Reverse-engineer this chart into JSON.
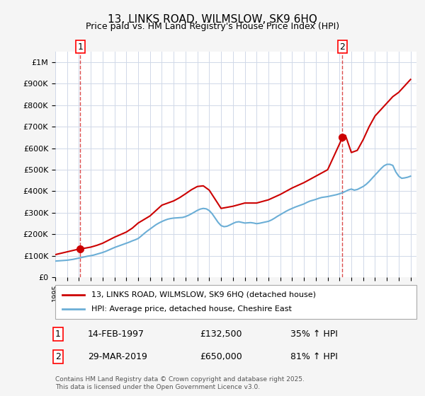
{
  "title": "13, LINKS ROAD, WILMSLOW, SK9 6HQ",
  "subtitle": "Price paid vs. HM Land Registry's House Price Index (HPI)",
  "hpi_color": "#6baed6",
  "price_color": "#cc0000",
  "background_color": "#f0f4ff",
  "plot_bg": "#ffffff",
  "ylim": [
    0,
    1050000
  ],
  "yticks": [
    0,
    100000,
    200000,
    300000,
    400000,
    500000,
    600000,
    700000,
    800000,
    900000,
    1000000
  ],
  "ytick_labels": [
    "£0",
    "£100K",
    "£200K",
    "£300K",
    "£400K",
    "£500K",
    "£600K",
    "£700K",
    "£800K",
    "£900K",
    "£1M"
  ],
  "xlim_start": 1995,
  "xlim_end": 2025.5,
  "transaction1_x": 1997.12,
  "transaction1_y": 132500,
  "transaction1_label": "1",
  "transaction2_x": 2019.25,
  "transaction2_y": 650000,
  "transaction2_label": "2",
  "legend_line1": "13, LINKS ROAD, WILMSLOW, SK9 6HQ (detached house)",
  "legend_line2": "HPI: Average price, detached house, Cheshire East",
  "note1_label": "1",
  "note1_date": "14-FEB-1997",
  "note1_price": "£132,500",
  "note1_hpi": "35% ↑ HPI",
  "note2_label": "2",
  "note2_date": "29-MAR-2019",
  "note2_price": "£650,000",
  "note2_hpi": "81% ↑ HPI",
  "footer": "Contains HM Land Registry data © Crown copyright and database right 2025.\nThis data is licensed under the Open Government Licence v3.0.",
  "hpi_data_x": [
    1995.0,
    1995.25,
    1995.5,
    1995.75,
    1996.0,
    1996.25,
    1996.5,
    1996.75,
    1997.0,
    1997.25,
    1997.5,
    1997.75,
    1998.0,
    1998.25,
    1998.5,
    1998.75,
    1999.0,
    1999.25,
    1999.5,
    1999.75,
    2000.0,
    2000.25,
    2000.5,
    2000.75,
    2001.0,
    2001.25,
    2001.5,
    2001.75,
    2002.0,
    2002.25,
    2002.5,
    2002.75,
    2003.0,
    2003.25,
    2003.5,
    2003.75,
    2004.0,
    2004.25,
    2004.5,
    2004.75,
    2005.0,
    2005.25,
    2005.5,
    2005.75,
    2006.0,
    2006.25,
    2006.5,
    2006.75,
    2007.0,
    2007.25,
    2007.5,
    2007.75,
    2008.0,
    2008.25,
    2008.5,
    2008.75,
    2009.0,
    2009.25,
    2009.5,
    2009.75,
    2010.0,
    2010.25,
    2010.5,
    2010.75,
    2011.0,
    2011.25,
    2011.5,
    2011.75,
    2012.0,
    2012.25,
    2012.5,
    2012.75,
    2013.0,
    2013.25,
    2013.5,
    2013.75,
    2014.0,
    2014.25,
    2014.5,
    2014.75,
    2015.0,
    2015.25,
    2015.5,
    2015.75,
    2016.0,
    2016.25,
    2016.5,
    2016.75,
    2017.0,
    2017.25,
    2017.5,
    2017.75,
    2018.0,
    2018.25,
    2018.5,
    2018.75,
    2019.0,
    2019.25,
    2019.5,
    2019.75,
    2020.0,
    2020.25,
    2020.5,
    2020.75,
    2021.0,
    2021.25,
    2021.5,
    2021.75,
    2022.0,
    2022.25,
    2022.5,
    2022.75,
    2023.0,
    2023.25,
    2023.5,
    2023.75,
    2024.0,
    2024.25,
    2024.5,
    2024.75,
    2025.0
  ],
  "hpi_data_y": [
    75000,
    76000,
    77000,
    78000,
    79000,
    81000,
    83000,
    86000,
    89000,
    92000,
    95000,
    98000,
    100000,
    103000,
    107000,
    111000,
    115000,
    120000,
    126000,
    132000,
    138000,
    143000,
    148000,
    153000,
    158000,
    163000,
    169000,
    174000,
    180000,
    191000,
    203000,
    214000,
    224000,
    234000,
    244000,
    252000,
    259000,
    265000,
    270000,
    273000,
    275000,
    276000,
    277000,
    278000,
    282000,
    288000,
    295000,
    303000,
    311000,
    317000,
    320000,
    318000,
    310000,
    295000,
    275000,
    255000,
    240000,
    235000,
    237000,
    243000,
    250000,
    256000,
    258000,
    255000,
    252000,
    253000,
    254000,
    252000,
    249000,
    251000,
    254000,
    257000,
    260000,
    266000,
    274000,
    283000,
    291000,
    299000,
    307000,
    314000,
    320000,
    326000,
    331000,
    336000,
    341000,
    348000,
    354000,
    358000,
    362000,
    367000,
    371000,
    373000,
    375000,
    378000,
    381000,
    384000,
    388000,
    393000,
    399000,
    406000,
    410000,
    405000,
    408000,
    415000,
    422000,
    432000,
    445000,
    460000,
    475000,
    490000,
    505000,
    518000,
    525000,
    525000,
    520000,
    490000,
    470000,
    460000,
    462000,
    465000,
    470000
  ],
  "price_data_x": [
    1995.0,
    1997.12,
    1997.5,
    1998.0,
    1998.5,
    1999.0,
    1999.5,
    2000.0,
    2001.0,
    2001.5,
    2002.0,
    2003.0,
    2003.5,
    2004.0,
    2005.0,
    2005.5,
    2006.0,
    2006.5,
    2007.0,
    2007.5,
    2008.0,
    2009.0,
    2010.0,
    2011.0,
    2012.0,
    2013.0,
    2014.0,
    2015.0,
    2016.0,
    2017.0,
    2018.0,
    2019.25,
    2019.5,
    2020.0,
    2020.5,
    2021.0,
    2021.5,
    2022.0,
    2022.5,
    2023.0,
    2023.5,
    2024.0,
    2024.5,
    2025.0
  ],
  "price_data_y": [
    105000,
    132500,
    135000,
    140000,
    148000,
    158000,
    172000,
    186000,
    210000,
    228000,
    252000,
    285000,
    310000,
    335000,
    355000,
    370000,
    388000,
    407000,
    422000,
    425000,
    405000,
    320000,
    330000,
    345000,
    345000,
    360000,
    385000,
    415000,
    440000,
    470000,
    500000,
    650000,
    660000,
    580000,
    590000,
    640000,
    700000,
    750000,
    780000,
    810000,
    840000,
    860000,
    890000,
    920000
  ]
}
